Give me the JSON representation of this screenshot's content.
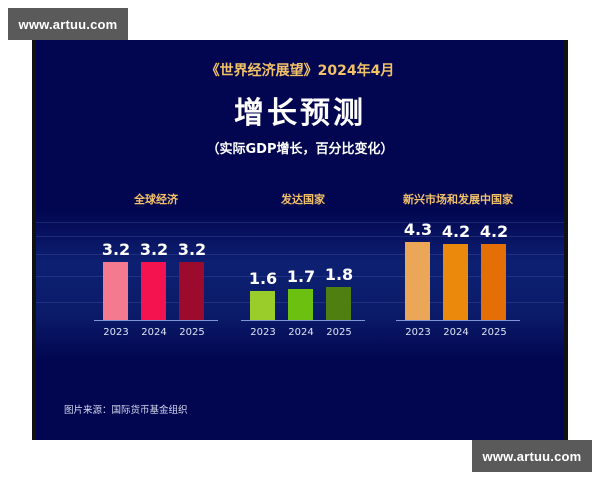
{
  "watermarks": {
    "top_left": "www.artuu.com",
    "bottom_right": "www.artuu.com"
  },
  "header": {
    "subtitle": "《世界经济展望》2024年4月",
    "title": "增长预测",
    "caption": "（实际GDP增长，百分比变化）"
  },
  "footer": {
    "source": "图片来源：国际货币基金组织"
  },
  "colors": {
    "background": "#020650",
    "title_accent": "#f2c168",
    "baseline": "#7f96d6"
  },
  "chart_data": [
    {
      "type": "bar",
      "title": "全球经济",
      "categories": [
        "2023",
        "2024",
        "2025"
      ],
      "values": [
        3.2,
        3.2,
        3.2
      ],
      "colors": [
        "#f47a8f",
        "#f5134f",
        "#9c0b2d"
      ],
      "xlabel": "",
      "ylabel": "实际GDP增长（%）"
    },
    {
      "type": "bar",
      "title": "发达国家",
      "categories": [
        "2023",
        "2024",
        "2025"
      ],
      "values": [
        1.6,
        1.7,
        1.8
      ],
      "colors": [
        "#9acd2a",
        "#6cc010",
        "#4f7f10"
      ],
      "xlabel": "",
      "ylabel": "实际GDP增长（%）"
    },
    {
      "type": "bar",
      "title": "新兴市场和发展中国家",
      "categories": [
        "2023",
        "2024",
        "2025"
      ],
      "values": [
        4.3,
        4.2,
        4.2
      ],
      "colors": [
        "#eca658",
        "#ea8a0c",
        "#e46f06"
      ],
      "xlabel": "",
      "ylabel": "实际GDP增长（%）"
    }
  ]
}
